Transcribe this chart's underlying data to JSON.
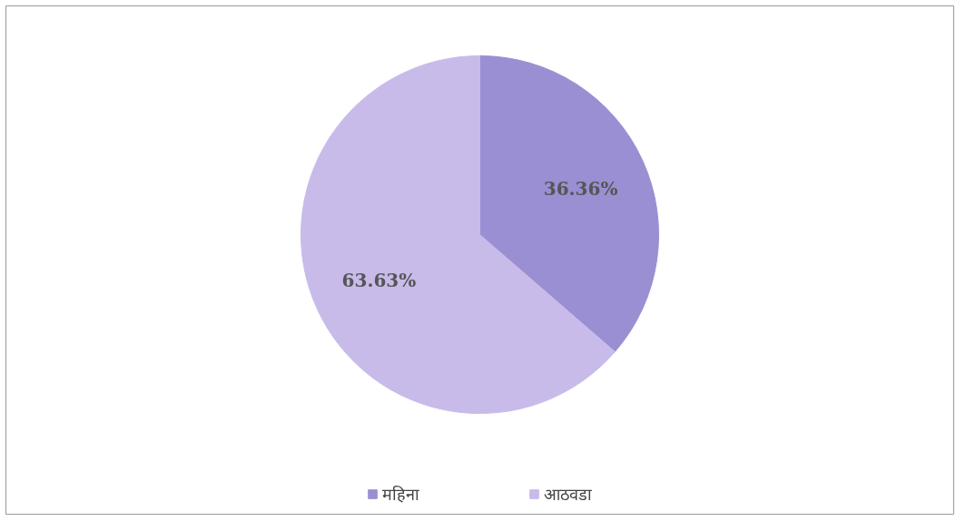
{
  "chart_data": {
    "type": "pie",
    "categories": [
      "महिना",
      "आठवडा"
    ],
    "values": [
      36.36,
      63.63
    ],
    "colors": [
      "#9a8fd2",
      "#c8bbea"
    ],
    "value_labels": [
      "36.36%",
      "63.63%"
    ],
    "legend": "bottom"
  }
}
